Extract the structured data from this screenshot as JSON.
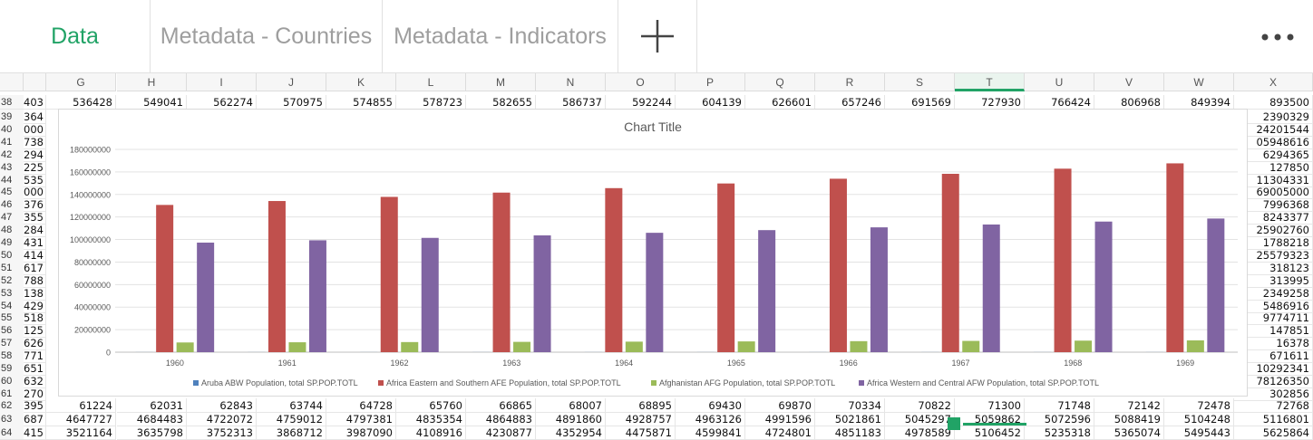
{
  "tabs": [
    {
      "label": "Data",
      "active": true
    },
    {
      "label": "Metadata - Countries",
      "active": false
    },
    {
      "label": "Metadata - Indicators",
      "active": false
    }
  ],
  "add_tab_icon": "plus-icon",
  "more_icon": "more-horizontal-icon",
  "accent": "#21a366",
  "columns": [
    "G",
    "H",
    "I",
    "J",
    "K",
    "L",
    "M",
    "N",
    "O",
    "P",
    "Q",
    "R",
    "S",
    "T",
    "U",
    "V",
    "W",
    "X"
  ],
  "selected_column": "T",
  "rows": {
    "r38": {
      "num": "38",
      "f": "403",
      "cells": [
        "536428",
        "549041",
        "562274",
        "570975",
        "574855",
        "578723",
        "582655",
        "586737",
        "592244",
        "604139",
        "626601",
        "657246",
        "691569",
        "727930",
        "766424",
        "806968",
        "849394",
        "893500"
      ]
    },
    "r62": {
      "num": "62",
      "f": "395",
      "cells": [
        "61224",
        "62031",
        "62843",
        "63744",
        "64728",
        "65760",
        "66865",
        "68007",
        "68895",
        "69430",
        "69870",
        "70334",
        "70822",
        "71300",
        "71748",
        "72142",
        "72478",
        "72768"
      ]
    },
    "r63": {
      "num": "63",
      "f": "687",
      "cells": [
        "4647727",
        "4684483",
        "4722072",
        "4759012",
        "4797381",
        "4835354",
        "4864883",
        "4891860",
        "4928757",
        "4963126",
        "4991596",
        "5021861",
        "5045297",
        "5059862",
        "5072596",
        "5088419",
        "5104248",
        "5116801"
      ]
    },
    "r64": {
      "num": "64",
      "f": "415",
      "cells": [
        "3521164",
        "3635798",
        "3752313",
        "3868712",
        "3987090",
        "4108916",
        "4230877",
        "4352954",
        "4475871",
        "4599841",
        "4724801",
        "4851183",
        "4978589",
        "5106452",
        "5235318",
        "5365074",
        "5495443",
        "5625864"
      ]
    }
  },
  "hidden_rows": [
    {
      "num": "39",
      "f": "364",
      "x": "2390329"
    },
    {
      "num": "40",
      "f": "000",
      "x": "24201544"
    },
    {
      "num": "41",
      "f": "738",
      "x": "05948616"
    },
    {
      "num": "42",
      "f": "294",
      "x": "6294365"
    },
    {
      "num": "43",
      "f": "225",
      "x": "127850"
    },
    {
      "num": "44",
      "f": "535",
      "x": "11304331"
    },
    {
      "num": "45",
      "f": "000",
      "x": "69005000"
    },
    {
      "num": "46",
      "f": "376",
      "x": "7996368"
    },
    {
      "num": "47",
      "f": "355",
      "x": "8243377"
    },
    {
      "num": "48",
      "f": "284",
      "x": "25902760"
    },
    {
      "num": "49",
      "f": "431",
      "x": "1788218"
    },
    {
      "num": "50",
      "f": "414",
      "x": "25579323"
    },
    {
      "num": "51",
      "f": "617",
      "x": "318123"
    },
    {
      "num": "52",
      "f": "788",
      "x": "313995"
    },
    {
      "num": "53",
      "f": "138",
      "x": "2349258"
    },
    {
      "num": "54",
      "f": "429",
      "x": "5486916"
    },
    {
      "num": "55",
      "f": "518",
      "x": "9774711"
    },
    {
      "num": "56",
      "f": "125",
      "x": "147851"
    },
    {
      "num": "57",
      "f": "626",
      "x": "16378"
    },
    {
      "num": "58",
      "f": "771",
      "x": "671611"
    },
    {
      "num": "59",
      "f": "651",
      "x": "10292341"
    },
    {
      "num": "60",
      "f": "632",
      "x": "78126350"
    },
    {
      "num": "61",
      "f": "270",
      "x": "302856"
    }
  ],
  "chart_data": {
    "type": "bar",
    "title": "Chart Title",
    "categories": [
      "1960",
      "1961",
      "1962",
      "1963",
      "1964",
      "1965",
      "1966",
      "1967",
      "1968",
      "1969"
    ],
    "ylim": [
      0,
      180000000
    ],
    "yticks": [
      "0",
      "20000000",
      "40000000",
      "60000000",
      "80000000",
      "100000000",
      "120000000",
      "140000000",
      "160000000",
      "180000000"
    ],
    "grid": true,
    "legend_position": "bottom",
    "series": [
      {
        "name": "Aruba ABW Population, total SP.POP.TOTL",
        "color": "#4f81bd",
        "values": [
          54608,
          55811,
          56682,
          57475,
          58178,
          58782,
          59291,
          59522,
          59471,
          59330
        ]
      },
      {
        "name": "Africa Eastern and Southern AFE Population, total SP.POP.TOTL",
        "color": "#c0504d",
        "values": [
          130692579,
          134169237,
          137835590,
          141630546,
          145605995,
          149742351,
          153955516,
          158313235,
          162875171,
          167596160
        ]
      },
      {
        "name": "Afghanistan AFG Population, total SP.POP.TOTL",
        "color": "#9bbb59",
        "values": [
          8622466,
          8790140,
          8969047,
          9157465,
          9355514,
          9565147,
          9783147,
          10010030,
          10247780,
          10494489
        ]
      },
      {
        "name": "Africa Western and Central AFW Population, total SP.POP.TOTL",
        "color": "#8064a2",
        "values": [
          97256290,
          99314028,
          101445032,
          103667517,
          105959979,
          108336203,
          110798486,
          113319950,
          115921723,
          118615741
        ]
      }
    ]
  }
}
